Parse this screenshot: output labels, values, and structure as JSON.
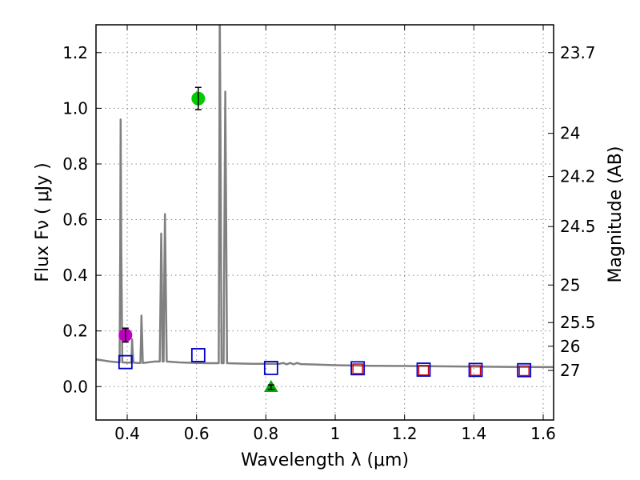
{
  "chart_data": {
    "type": "scatter",
    "xlabel": "Wavelength  λ (μm)",
    "ylabel": "Flux  Fν  ( μJy )",
    "ylabel_right": "Magnitude (AB)",
    "xlim": [
      0.31,
      1.63
    ],
    "ylim": [
      -0.12,
      1.3
    ],
    "grid": true,
    "x_ticks": [
      0.4,
      0.6,
      0.8,
      1.0,
      1.2,
      1.4,
      1.6
    ],
    "x_tick_labels": [
      "0.4",
      "0.6",
      "0.8",
      "1",
      "1.2",
      "1.4",
      "1.6"
    ],
    "y_ticks": [
      0.0,
      0.2,
      0.4,
      0.6,
      0.8,
      1.0,
      1.2
    ],
    "y_tick_labels": [
      "0.0",
      "0.2",
      "0.4",
      "0.6",
      "0.8",
      "1.0",
      "1.2"
    ],
    "magnitude_ticks": [
      {
        "label": "23.7",
        "flux": 1.2
      },
      {
        "label": "24",
        "flux": 0.91
      },
      {
        "label": "24.2",
        "flux": 0.755
      },
      {
        "label": "24.5",
        "flux": 0.575
      },
      {
        "label": "25",
        "flux": 0.365
      },
      {
        "label": "25.5",
        "flux": 0.23
      },
      {
        "label": "26",
        "flux": 0.145
      },
      {
        "label": "27",
        "flux": 0.058
      }
    ],
    "spectrum": {
      "name": "model spectrum",
      "color": "#808080",
      "points": [
        [
          0.31,
          0.098
        ],
        [
          0.35,
          0.09
        ],
        [
          0.378,
          0.087
        ],
        [
          0.38,
          0.5
        ],
        [
          0.381,
          0.96
        ],
        [
          0.383,
          0.5
        ],
        [
          0.386,
          0.087
        ],
        [
          0.4,
          0.086
        ],
        [
          0.412,
          0.086
        ],
        [
          0.413,
          0.12
        ],
        [
          0.414,
          0.17
        ],
        [
          0.416,
          0.12
        ],
        [
          0.418,
          0.086
        ],
        [
          0.43,
          0.085
        ],
        [
          0.438,
          0.085
        ],
        [
          0.44,
          0.18
        ],
        [
          0.441,
          0.255
        ],
        [
          0.443,
          0.18
        ],
        [
          0.445,
          0.085
        ],
        [
          0.48,
          0.09
        ],
        [
          0.494,
          0.09
        ],
        [
          0.497,
          0.4
        ],
        [
          0.498,
          0.55
        ],
        [
          0.5,
          0.4
        ],
        [
          0.502,
          0.09
        ],
        [
          0.505,
          0.09
        ],
        [
          0.507,
          0.4
        ],
        [
          0.509,
          0.62
        ],
        [
          0.511,
          0.4
        ],
        [
          0.514,
          0.09
        ],
        [
          0.55,
          0.087
        ],
        [
          0.6,
          0.085
        ],
        [
          0.64,
          0.084
        ],
        [
          0.664,
          0.084
        ],
        [
          0.666,
          0.9
        ],
        [
          0.667,
          1.35
        ],
        [
          0.669,
          0.9
        ],
        [
          0.672,
          0.084
        ],
        [
          0.678,
          0.084
        ],
        [
          0.681,
          0.7
        ],
        [
          0.683,
          1.06
        ],
        [
          0.685,
          0.7
        ],
        [
          0.688,
          0.084
        ],
        [
          0.72,
          0.083
        ],
        [
          0.76,
          0.082
        ],
        [
          0.8,
          0.082
        ],
        [
          0.84,
          0.082
        ],
        [
          0.85,
          0.085
        ],
        [
          0.86,
          0.08
        ],
        [
          0.87,
          0.085
        ],
        [
          0.88,
          0.08
        ],
        [
          0.89,
          0.085
        ],
        [
          0.9,
          0.081
        ],
        [
          0.95,
          0.079
        ],
        [
          1.0,
          0.077
        ],
        [
          1.1,
          0.075
        ],
        [
          1.2,
          0.074
        ],
        [
          1.3,
          0.073
        ],
        [
          1.4,
          0.072
        ],
        [
          1.5,
          0.071
        ],
        [
          1.63,
          0.07
        ]
      ]
    },
    "observed_points": [
      {
        "name": "magenta detection",
        "x": 0.395,
        "y": 0.185,
        "yerr": 0.025,
        "color": "#c000c0",
        "marker": "circle"
      },
      {
        "name": "green detection",
        "x": 0.605,
        "y": 1.035,
        "yerr": 0.04,
        "color": "#00cc00",
        "marker": "circle"
      },
      {
        "name": "green limit",
        "x": 0.815,
        "y": -0.002,
        "yerr": 0.008,
        "color": "#00aa00",
        "marker": "triangle"
      }
    ],
    "model_photometry_blue": {
      "color": "#0000cc",
      "marker": "square",
      "points": [
        [
          0.395,
          0.088
        ],
        [
          0.605,
          0.113
        ],
        [
          0.815,
          0.067
        ],
        [
          1.065,
          0.066
        ],
        [
          1.255,
          0.061
        ],
        [
          1.405,
          0.06
        ],
        [
          1.545,
          0.059
        ]
      ]
    },
    "model_photometry_red": {
      "color": "#cc0000",
      "marker": "square",
      "points": [
        [
          1.065,
          0.064
        ],
        [
          1.255,
          0.059
        ],
        [
          1.405,
          0.058
        ],
        [
          1.545,
          0.057
        ]
      ]
    }
  }
}
